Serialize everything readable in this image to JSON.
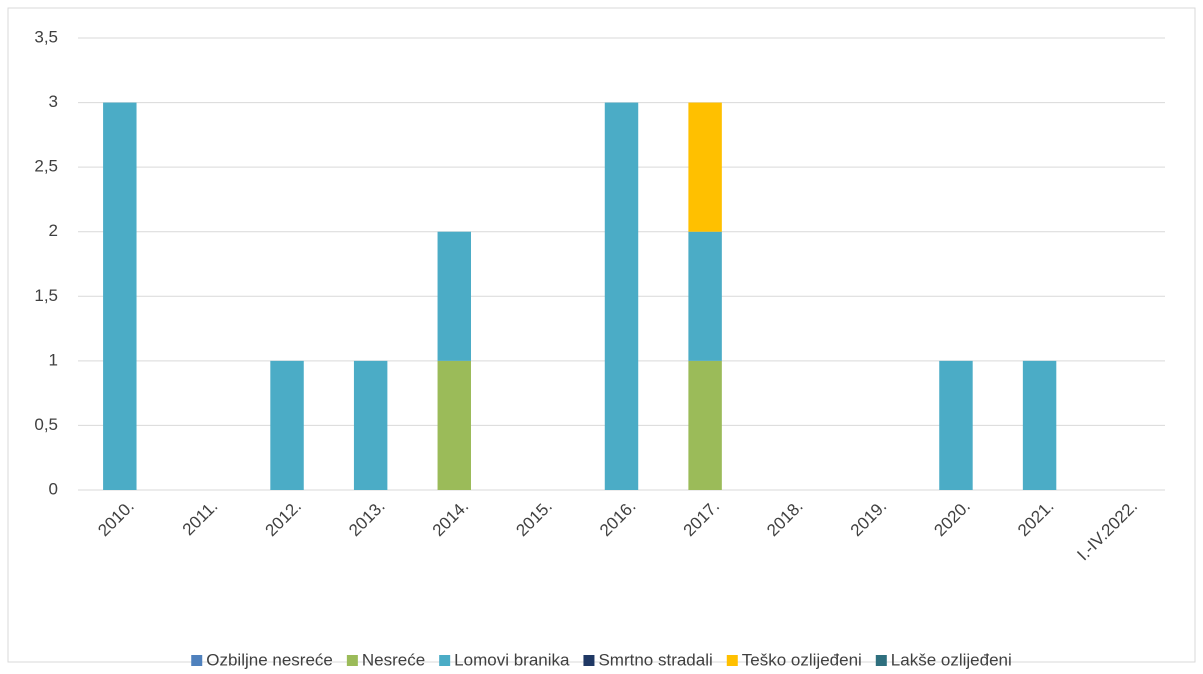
{
  "chart_data": {
    "type": "stacked_bar",
    "categories": [
      "2010.",
      "2011.",
      "2012.",
      "2013.",
      "2014.",
      "2015.",
      "2016.",
      "2017.",
      "2018.",
      "2019.",
      "2020.",
      "2021.",
      "I.-IV.2022."
    ],
    "series": [
      {
        "name": "Ozbiljne nesreće",
        "color": "#4f81bd",
        "values": [
          0,
          0,
          0,
          0,
          0,
          0,
          0,
          0,
          0,
          0,
          0,
          0,
          0
        ]
      },
      {
        "name": "Nesreće",
        "color": "#9bbb59",
        "values": [
          0,
          0,
          0,
          0,
          1,
          0,
          0,
          1,
          0,
          0,
          0,
          0,
          0
        ]
      },
      {
        "name": "Lomovi branika",
        "color": "#4bacc6",
        "values": [
          3,
          0,
          1,
          1,
          1,
          0,
          3,
          1,
          0,
          0,
          1,
          1,
          0
        ]
      },
      {
        "name": "Smrtno stradali",
        "color": "#1f3864",
        "values": [
          0,
          0,
          0,
          0,
          0,
          0,
          0,
          0,
          0,
          0,
          0,
          0,
          0
        ]
      },
      {
        "name": "Teško ozlijeđeni",
        "color": "#ffc000",
        "values": [
          0,
          0,
          0,
          0,
          0,
          0,
          0,
          1,
          0,
          0,
          0,
          0,
          0
        ]
      },
      {
        "name": "Lakše ozlijeđeni",
        "color": "#2e6f7e",
        "values": [
          0,
          0,
          0,
          0,
          0,
          0,
          0,
          0,
          0,
          0,
          0,
          0,
          0
        ]
      }
    ],
    "ylim": [
      0,
      3.5
    ],
    "yticks": [
      0,
      {
        "value": 0.5,
        "label": "0,5"
      },
      1,
      {
        "value": 1.5,
        "label": "1,5"
      },
      2,
      {
        "value": 2.5,
        "label": "2,5"
      },
      3,
      {
        "value": 3.5,
        "label": "3,5"
      }
    ],
    "grid": true,
    "legend": "bottom"
  }
}
